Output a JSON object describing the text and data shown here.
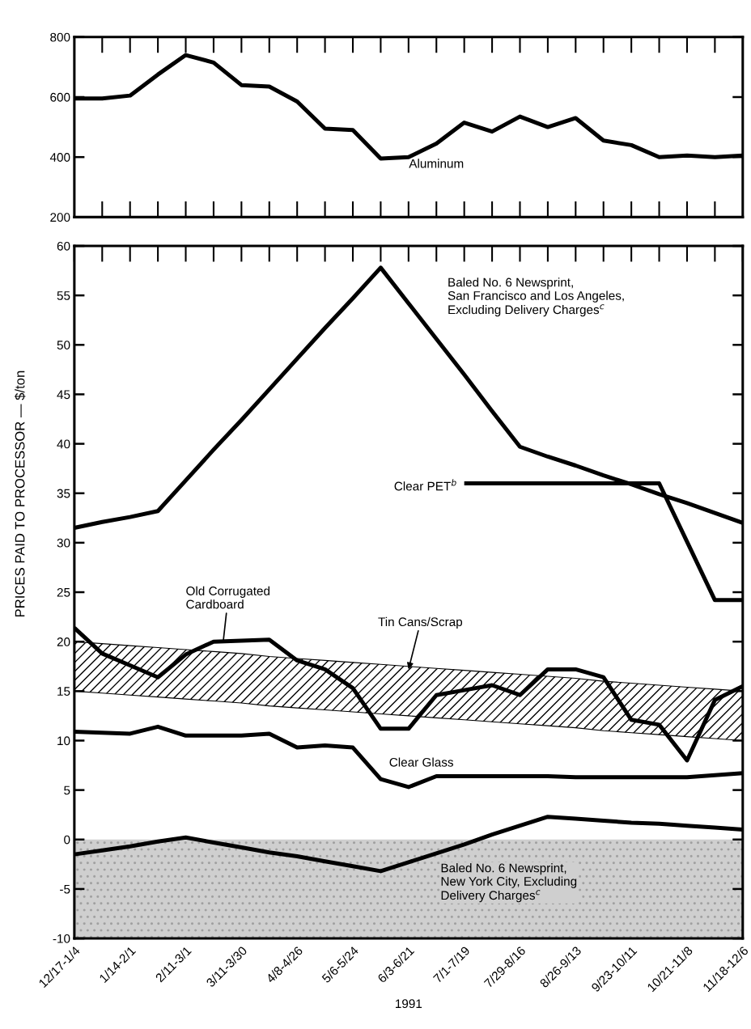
{
  "chart_data": [
    {
      "type": "line",
      "categories": [
        null,
        null,
        null,
        null,
        null,
        null,
        null,
        null,
        null,
        null,
        null,
        null,
        null,
        null,
        null,
        null,
        null,
        null,
        null,
        null,
        null,
        null,
        null,
        null,
        null
      ],
      "ylim": [
        200,
        800
      ],
      "yticks": [
        200,
        400,
        600,
        800
      ],
      "tick_labels": "y",
      "series": [
        {
          "name": "Aluminum",
          "color": "#000000",
          "values": [
            595,
            595,
            605,
            675,
            740,
            715,
            640,
            635,
            585,
            495,
            490,
            395,
            400,
            445,
            515,
            485,
            535,
            500,
            530,
            455,
            440,
            400,
            405,
            400,
            405
          ]
        }
      ]
    },
    {
      "type": "line",
      "xlabel": "1991",
      "ylabel": "PRICES PAID TO PROCESSOR — $/ton",
      "categories": [
        "12/17-1/4",
        null,
        "1/14-2/1",
        null,
        "2/11-3/1",
        null,
        "3/11-3/30",
        null,
        "4/8-4/26",
        null,
        "5/6-5/24",
        null,
        "6/3-6/21",
        null,
        "7/1-7/19",
        null,
        "7/29-8/16",
        null,
        "8/26-9/13",
        null,
        "9/23-10/11",
        null,
        "10/21-11/8",
        null,
        "11/18-12/6"
      ],
      "ylim": [
        -10,
        60
      ],
      "yticks": [
        -10,
        -5,
        0,
        5,
        10,
        15,
        20,
        25,
        30,
        35,
        40,
        45,
        50,
        55,
        60
      ],
      "bands": [
        {
          "axis": "y",
          "from": -10,
          "to": 0,
          "color": "#cfcfcf"
        }
      ],
      "series": [
        {
          "name": "Baled No. 6 Newsprint,\nSan Francisco and Los Angeles,\nExcluding Delivery Charges$^{c}$",
          "color": "#000000",
          "values": [
            31.5,
            32.1,
            32.6,
            33.2,
            36.3,
            39.4,
            42.4,
            45.5,
            48.6,
            51.7,
            54.7,
            57.8,
            54.2,
            50.6,
            47.0,
            43.3,
            39.7,
            38.7,
            37.8,
            36.8,
            35.9,
            34.9,
            34.0,
            33.0,
            32.0
          ]
        },
        {
          "name": "Clear PET$^{b}$",
          "color": "#000000",
          "values": [
            null,
            null,
            null,
            null,
            null,
            null,
            null,
            null,
            null,
            null,
            null,
            null,
            null,
            null,
            36,
            36,
            36,
            36,
            36,
            36,
            36,
            36,
            30.1,
            24.2,
            24.2
          ]
        },
        {
          "name": "Tin Cans/Scrap",
          "color": "#000000",
          "type": "area",
          "values": [
            null,
            null,
            null,
            null,
            null,
            null,
            null,
            null,
            null,
            null,
            null,
            null,
            null,
            null,
            null,
            null,
            null,
            null,
            null,
            null,
            null,
            null,
            null,
            null,
            null
          ],
          "lower": [
            15.0,
            14.8,
            14.6,
            14.4,
            14.2,
            14.0,
            13.8,
            13.5,
            13.3,
            13.1,
            12.9,
            12.7,
            12.5,
            12.3,
            12.1,
            11.9,
            11.7,
            11.5,
            11.3,
            11.0,
            10.8,
            10.6,
            10.4,
            10.2,
            10.0
          ],
          "upper": [
            20.0,
            19.8,
            19.6,
            19.4,
            19.2,
            19.0,
            18.8,
            18.5,
            18.3,
            18.1,
            17.9,
            17.7,
            17.5,
            17.3,
            17.1,
            16.9,
            16.7,
            16.5,
            16.3,
            16.0,
            15.8,
            15.6,
            15.4,
            15.2,
            15.0
          ]
        },
        {
          "name": "Old Corrugated\nCardboard",
          "color": "#000000",
          "values": [
            21.4,
            18.8,
            17.6,
            16.4,
            18.7,
            20.0,
            20.1,
            20.2,
            18.1,
            17.2,
            15.3,
            11.2,
            11.2,
            14.6,
            15.1,
            15.6,
            14.6,
            17.2,
            17.2,
            16.4,
            12.1,
            11.6,
            8.0,
            14.1,
            15.5
          ]
        },
        {
          "name": "Clear Glass",
          "color": "#000000",
          "values": [
            10.9,
            10.8,
            10.7,
            11.4,
            10.5,
            10.5,
            10.5,
            10.7,
            9.3,
            9.5,
            9.3,
            6.1,
            5.3,
            6.4,
            6.4,
            6.4,
            6.4,
            6.4,
            6.3,
            6.3,
            6.3,
            6.3,
            6.3,
            6.5,
            6.7
          ]
        },
        {
          "name": "Baled No. 6 Newsprint,\nNew York City, Excluding\nDelivery Charges$^{c}$",
          "color": "#000000",
          "values": [
            -1.5,
            -1.1,
            -0.7,
            -0.2,
            0.2,
            -0.3,
            -0.8,
            -1.3,
            -1.7,
            -2.2,
            -2.7,
            -3.2,
            -2.3,
            -1.4,
            -0.5,
            0.5,
            1.4,
            2.3,
            2.1,
            1.9,
            1.7,
            1.6,
            1.4,
            1.2,
            1.0
          ]
        }
      ]
    }
  ]
}
